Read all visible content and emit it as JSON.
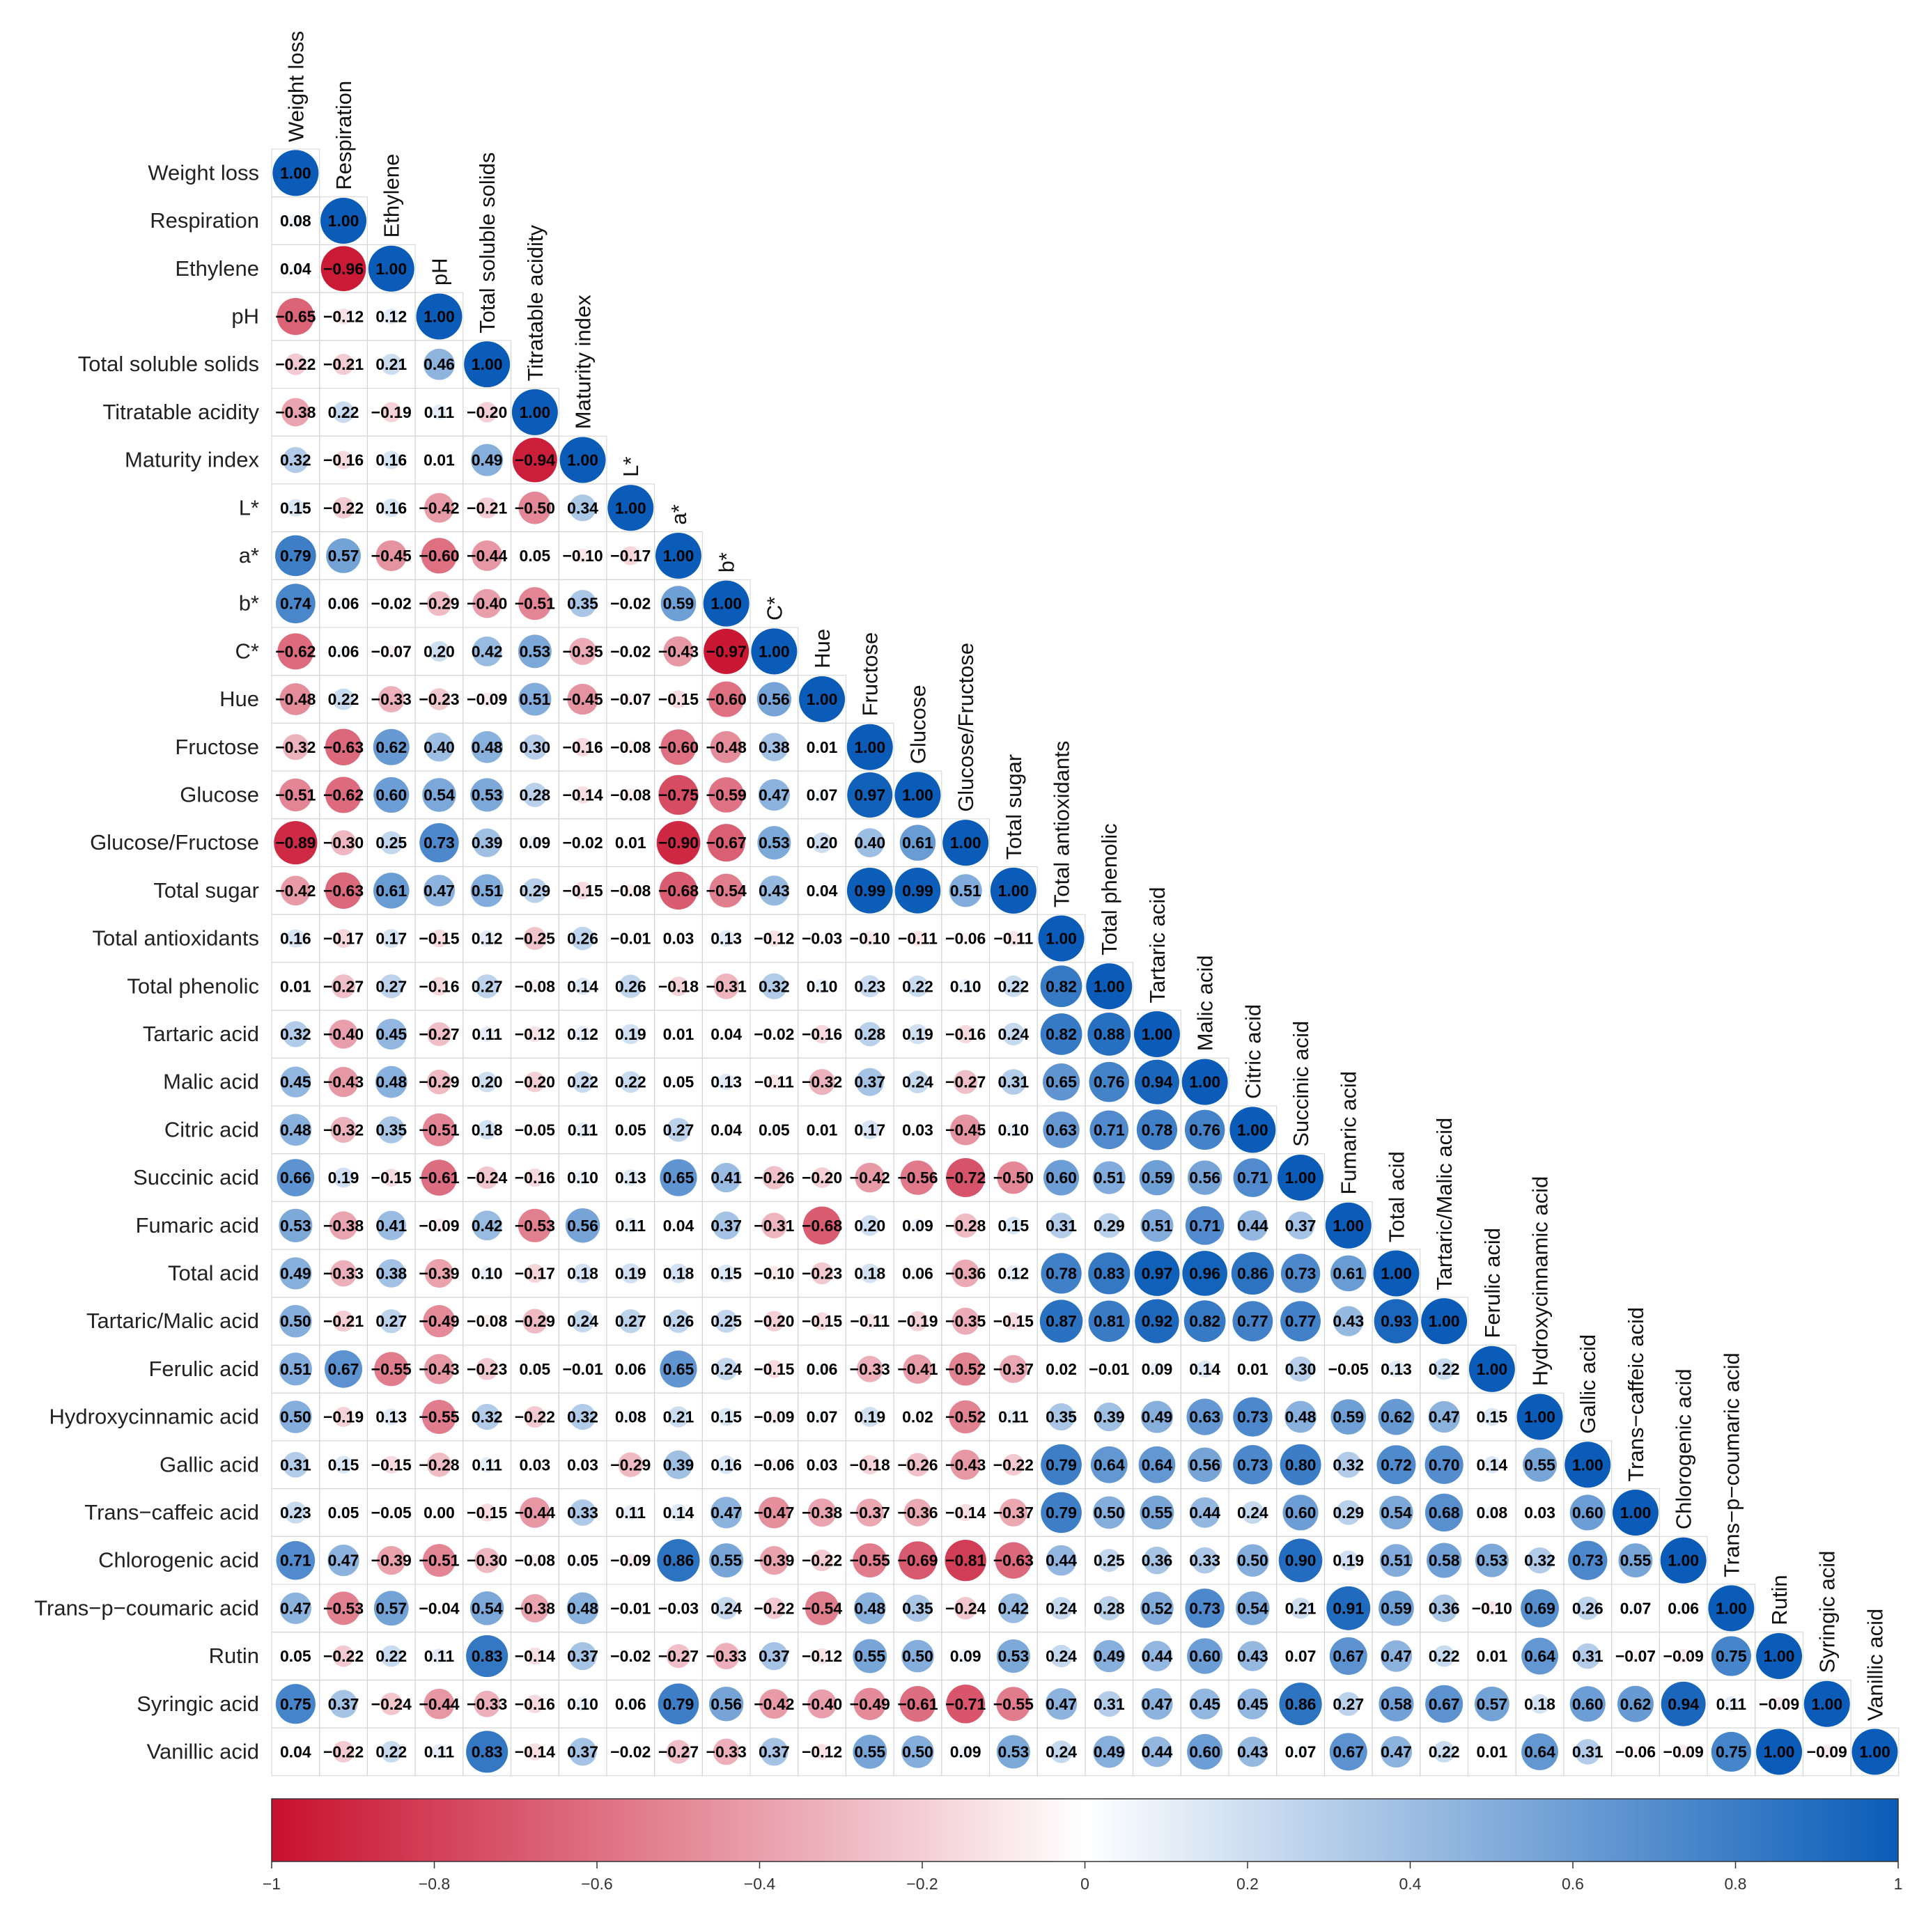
{
  "chart_data": {
    "type": "heatmap",
    "subtype": "correlation-matrix-lower-triangle",
    "variables": [
      "Weight loss",
      "Respiration",
      "Ethylene",
      "pH",
      "Total soluble solids",
      "Titratable acidity",
      "Maturity index",
      "L*",
      "a*",
      "b*",
      "C*",
      "Hue",
      "Fructose",
      "Glucose",
      "Glucose/Fructose",
      "Total sugar",
      "Total antioxidants",
      "Total phenolic",
      "Tartaric acid",
      "Malic acid",
      "Citric acid",
      "Succinic acid",
      "Fumaric acid",
      "Total acid",
      "Tartaric/Malic acid",
      "Ferulic acid",
      "Hydroxycinnamic acid",
      "Gallic acid",
      "Trans−caffeic acid",
      "Chlorogenic acid",
      "Trans−p−coumaric acid",
      "Rutin",
      "Syringic acid",
      "Vanillic acid"
    ],
    "matrix": [
      [
        1.0
      ],
      [
        0.08,
        1.0
      ],
      [
        0.04,
        -0.96,
        1.0
      ],
      [
        -0.65,
        -0.12,
        0.12,
        1.0
      ],
      [
        -0.22,
        -0.21,
        0.21,
        0.46,
        1.0
      ],
      [
        -0.38,
        0.22,
        -0.19,
        0.11,
        -0.2,
        1.0
      ],
      [
        0.32,
        -0.16,
        0.16,
        0.01,
        0.49,
        -0.94,
        1.0
      ],
      [
        0.15,
        -0.22,
        0.16,
        -0.42,
        -0.21,
        -0.5,
        0.34,
        1.0
      ],
      [
        0.79,
        0.57,
        -0.45,
        -0.6,
        -0.44,
        0.05,
        -0.1,
        -0.17,
        1.0
      ],
      [
        0.74,
        0.06,
        -0.02,
        -0.29,
        -0.4,
        -0.51,
        0.35,
        -0.02,
        0.59,
        1.0
      ],
      [
        -0.62,
        0.06,
        -0.07,
        0.2,
        0.42,
        0.53,
        -0.35,
        -0.02,
        -0.43,
        -0.97,
        1.0
      ],
      [
        -0.48,
        0.22,
        -0.33,
        -0.23,
        -0.09,
        0.51,
        -0.45,
        -0.07,
        -0.15,
        -0.6,
        0.56,
        1.0
      ],
      [
        -0.32,
        -0.63,
        0.62,
        0.4,
        0.48,
        0.3,
        -0.16,
        -0.08,
        -0.6,
        -0.48,
        0.38,
        0.01,
        1.0
      ],
      [
        -0.51,
        -0.62,
        0.6,
        0.54,
        0.53,
        0.28,
        -0.14,
        -0.08,
        -0.75,
        -0.59,
        0.47,
        0.07,
        0.97,
        1.0
      ],
      [
        -0.89,
        -0.3,
        0.25,
        0.73,
        0.39,
        0.09,
        -0.02,
        0.01,
        -0.9,
        -0.67,
        0.53,
        0.2,
        0.4,
        0.61,
        1.0
      ],
      [
        -0.42,
        -0.63,
        0.61,
        0.47,
        0.51,
        0.29,
        -0.15,
        -0.08,
        -0.68,
        -0.54,
        0.43,
        0.04,
        0.99,
        0.99,
        0.51,
        1.0
      ],
      [
        0.16,
        -0.17,
        0.17,
        -0.15,
        0.12,
        -0.25,
        0.26,
        -0.01,
        0.03,
        0.13,
        -0.12,
        -0.03,
        -0.1,
        -0.11,
        -0.06,
        -0.11,
        1.0
      ],
      [
        0.01,
        -0.27,
        0.27,
        -0.16,
        0.27,
        -0.08,
        0.14,
        0.26,
        -0.18,
        -0.31,
        0.32,
        0.1,
        0.23,
        0.22,
        0.1,
        0.22,
        0.82,
        1.0
      ],
      [
        0.32,
        -0.4,
        0.45,
        -0.27,
        0.11,
        -0.12,
        0.12,
        0.19,
        0.01,
        0.04,
        -0.02,
        -0.16,
        0.28,
        0.19,
        -0.16,
        0.24,
        0.82,
        0.88,
        1.0
      ],
      [
        0.45,
        -0.43,
        0.48,
        -0.29,
        0.2,
        -0.2,
        0.22,
        0.22,
        0.05,
        0.13,
        -0.11,
        -0.32,
        0.37,
        0.24,
        -0.27,
        0.31,
        0.65,
        0.76,
        0.94,
        1.0
      ],
      [
        0.48,
        -0.32,
        0.35,
        -0.51,
        0.18,
        -0.05,
        0.11,
        0.05,
        0.27,
        0.04,
        0.05,
        0.01,
        0.17,
        0.03,
        -0.45,
        0.1,
        0.63,
        0.71,
        0.78,
        0.76,
        1.0
      ],
      [
        0.66,
        0.19,
        -0.15,
        -0.61,
        -0.24,
        -0.16,
        0.1,
        0.13,
        0.65,
        0.41,
        -0.26,
        -0.2,
        -0.42,
        -0.56,
        -0.72,
        -0.5,
        0.6,
        0.51,
        0.59,
        0.56,
        0.71,
        1.0
      ],
      [
        0.53,
        -0.38,
        0.41,
        -0.09,
        0.42,
        -0.53,
        0.56,
        0.11,
        0.04,
        0.37,
        -0.31,
        -0.68,
        0.2,
        0.09,
        -0.28,
        0.15,
        0.31,
        0.29,
        0.51,
        0.71,
        0.44,
        0.37,
        1.0
      ],
      [
        0.49,
        -0.33,
        0.38,
        -0.39,
        0.1,
        -0.17,
        0.18,
        0.19,
        0.18,
        0.15,
        -0.1,
        -0.23,
        0.18,
        0.06,
        -0.36,
        0.12,
        0.78,
        0.83,
        0.97,
        0.96,
        0.86,
        0.73,
        0.61,
        1.0
      ],
      [
        0.5,
        -0.21,
        0.27,
        -0.49,
        -0.08,
        -0.29,
        0.24,
        0.27,
        0.26,
        0.25,
        -0.2,
        -0.15,
        -0.11,
        -0.19,
        -0.35,
        -0.15,
        0.87,
        0.81,
        0.92,
        0.82,
        0.77,
        0.77,
        0.43,
        0.93,
        1.0
      ],
      [
        0.51,
        0.67,
        -0.55,
        -0.43,
        -0.23,
        0.05,
        -0.01,
        0.06,
        0.65,
        0.24,
        -0.15,
        0.06,
        -0.33,
        -0.41,
        -0.52,
        -0.37,
        0.02,
        -0.01,
        0.09,
        0.14,
        0.01,
        0.3,
        -0.05,
        0.13,
        0.22,
        1.0
      ],
      [
        0.5,
        -0.19,
        0.13,
        -0.55,
        0.32,
        -0.22,
        0.32,
        0.08,
        0.21,
        0.15,
        -0.09,
        0.07,
        0.19,
        0.02,
        -0.52,
        0.11,
        0.35,
        0.39,
        0.49,
        0.63,
        0.73,
        0.48,
        0.59,
        0.62,
        0.47,
        0.15,
        1.0
      ],
      [
        0.31,
        0.15,
        -0.15,
        -0.28,
        0.11,
        0.03,
        0.03,
        -0.29,
        0.39,
        0.16,
        -0.06,
        0.03,
        -0.18,
        -0.26,
        -0.43,
        -0.22,
        0.79,
        0.64,
        0.64,
        0.56,
        0.73,
        0.8,
        0.32,
        0.72,
        0.7,
        0.14,
        0.55,
        1.0
      ],
      [
        0.23,
        0.05,
        -0.05,
        0.0,
        -0.15,
        -0.44,
        0.33,
        0.11,
        0.14,
        0.47,
        -0.47,
        -0.38,
        -0.37,
        -0.36,
        -0.14,
        -0.37,
        0.79,
        0.5,
        0.55,
        0.44,
        0.24,
        0.6,
        0.29,
        0.54,
        0.68,
        0.08,
        0.03,
        0.6,
        1.0
      ],
      [
        0.71,
        0.47,
        -0.39,
        -0.51,
        -0.3,
        -0.08,
        0.05,
        -0.09,
        0.86,
        0.55,
        -0.39,
        -0.22,
        -0.55,
        -0.69,
        -0.81,
        -0.63,
        0.44,
        0.25,
        0.36,
        0.33,
        0.5,
        0.9,
        0.19,
        0.51,
        0.58,
        0.53,
        0.32,
        0.73,
        0.55,
        1.0
      ],
      [
        0.47,
        -0.53,
        0.57,
        -0.04,
        0.54,
        -0.38,
        0.48,
        -0.01,
        -0.03,
        0.24,
        -0.22,
        -0.54,
        0.48,
        0.35,
        -0.24,
        0.42,
        0.24,
        0.28,
        0.52,
        0.73,
        0.54,
        0.21,
        0.91,
        0.59,
        0.36,
        -0.1,
        0.69,
        0.26,
        0.07,
        0.06,
        1.0
      ],
      [
        0.05,
        -0.22,
        0.22,
        0.11,
        0.83,
        -0.14,
        0.37,
        -0.02,
        -0.27,
        -0.33,
        0.37,
        -0.12,
        0.55,
        0.5,
        0.09,
        0.53,
        0.24,
        0.49,
        0.44,
        0.6,
        0.43,
        0.07,
        0.67,
        0.47,
        0.22,
        0.01,
        0.64,
        0.31,
        -0.07,
        -0.09,
        0.75,
        1.0
      ],
      [
        0.75,
        0.37,
        -0.24,
        -0.44,
        -0.33,
        -0.16,
        0.1,
        0.06,
        0.79,
        0.56,
        -0.42,
        -0.4,
        -0.49,
        -0.61,
        -0.71,
        -0.55,
        0.47,
        0.31,
        0.47,
        0.45,
        0.45,
        0.86,
        0.27,
        0.58,
        0.67,
        0.57,
        0.18,
        0.6,
        0.62,
        0.94,
        0.11,
        -0.09,
        1.0
      ],
      [
        0.04,
        -0.22,
        0.22,
        0.11,
        0.83,
        -0.14,
        0.37,
        -0.02,
        -0.27,
        -0.33,
        0.37,
        -0.12,
        0.55,
        0.5,
        0.09,
        0.53,
        0.24,
        0.49,
        0.44,
        0.6,
        0.43,
        0.07,
        0.67,
        0.47,
        0.22,
        0.01,
        0.64,
        0.31,
        -0.06,
        -0.09,
        0.75,
        1.0,
        -0.09,
        1.0
      ]
    ],
    "colorbar": {
      "range": [
        -1,
        1
      ],
      "ticks": [
        -1,
        -0.8,
        -0.6,
        -0.4,
        -0.2,
        0,
        0.2,
        0.4,
        0.6,
        0.8,
        1
      ],
      "tick_labels": [
        "−1",
        "−0.8",
        "−0.6",
        "−0.4",
        "−0.2",
        "0",
        "0.2",
        "0.4",
        "0.6",
        "0.8",
        "1"
      ],
      "colors": {
        "negative": "#c8102e",
        "zero": "#ffffff",
        "positive": "#0a5cb8"
      },
      "placement": "bottom"
    }
  }
}
